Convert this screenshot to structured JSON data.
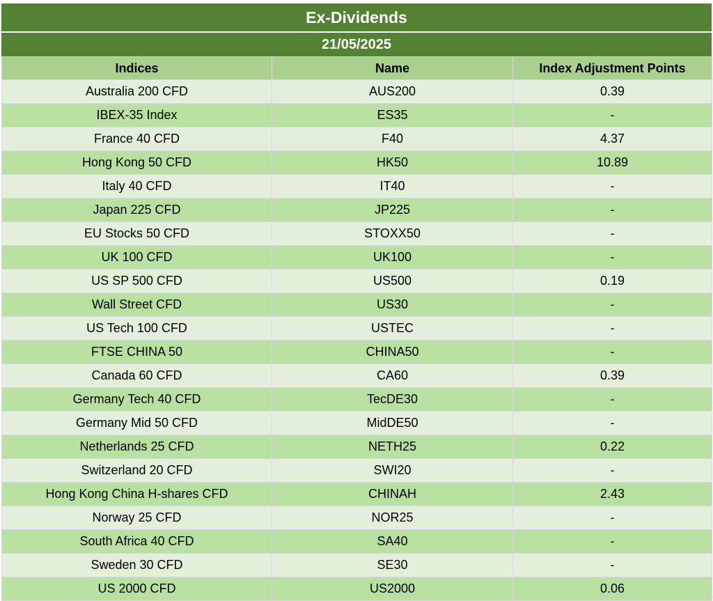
{
  "title": "Ex-Dividends",
  "date": "21/05/2025",
  "columns": [
    "Indices",
    "Name",
    "Index Adjustment Points"
  ],
  "rows": [
    {
      "index": "Australia 200 CFD",
      "name": "AUS200",
      "points": "0.39"
    },
    {
      "index": "IBEX-35 Index",
      "name": "ES35",
      "points": "-"
    },
    {
      "index": "France 40 CFD",
      "name": "F40",
      "points": "4.37"
    },
    {
      "index": "Hong Kong 50 CFD",
      "name": "HK50",
      "points": "10.89"
    },
    {
      "index": "Italy 40 CFD",
      "name": "IT40",
      "points": "-"
    },
    {
      "index": "Japan 225 CFD",
      "name": "JP225",
      "points": "-"
    },
    {
      "index": "EU Stocks 50 CFD",
      "name": "STOXX50",
      "points": "-"
    },
    {
      "index": "UK 100 CFD",
      "name": "UK100",
      "points": "-"
    },
    {
      "index": "US SP 500 CFD",
      "name": "US500",
      "points": "0.19"
    },
    {
      "index": "Wall Street CFD",
      "name": "US30",
      "points": "-"
    },
    {
      "index": "US Tech 100 CFD",
      "name": "USTEC",
      "points": "-"
    },
    {
      "index": "FTSE CHINA 50",
      "name": "CHINA50",
      "points": "-"
    },
    {
      "index": "Canada 60 CFD",
      "name": "CA60",
      "points": "0.39"
    },
    {
      "index": "Germany Tech 40 CFD",
      "name": "TecDE30",
      "points": "-"
    },
    {
      "index": "Germany Mid 50 CFD",
      "name": "MidDE50",
      "points": "-"
    },
    {
      "index": "Netherlands 25 CFD",
      "name": "NETH25",
      "points": "0.22"
    },
    {
      "index": "Switzerland 20 CFD",
      "name": "SWI20",
      "points": "-"
    },
    {
      "index": "Hong Kong China H-shares CFD",
      "name": "CHINAH",
      "points": "2.43"
    },
    {
      "index": "Norway 25 CFD",
      "name": "NOR25",
      "points": "-"
    },
    {
      "index": "South Africa 40 CFD",
      "name": "SA40",
      "points": "-"
    },
    {
      "index": "Sweden 30 CFD",
      "name": "SE30",
      "points": "-"
    },
    {
      "index": "US 2000 CFD",
      "name": "US2000",
      "points": "0.06"
    }
  ],
  "colors": {
    "header_dark": "#548235",
    "header_light": "#a9d08e",
    "row_light": "#e2efda",
    "row_dark": "#b8e0a0"
  }
}
